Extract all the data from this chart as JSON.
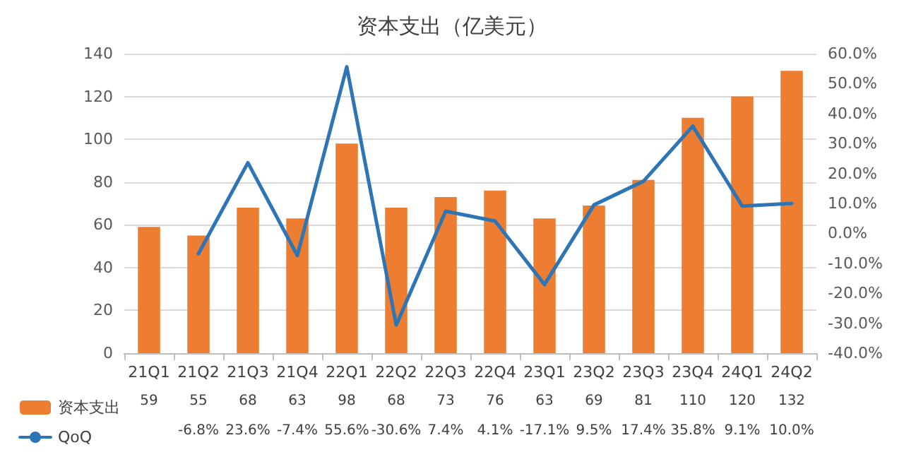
{
  "chart_data": {
    "type": "bar",
    "title": "资本支出（亿美元）",
    "categories": [
      "21Q1",
      "21Q2",
      "21Q3",
      "21Q4",
      "22Q1",
      "22Q2",
      "22Q3",
      "22Q4",
      "23Q1",
      "23Q2",
      "23Q3",
      "23Q4",
      "24Q1",
      "24Q2"
    ],
    "series": [
      {
        "name": "资本支出",
        "color": "#ed7d31",
        "values": [
          59,
          55,
          68,
          63,
          98,
          68,
          73,
          76,
          63,
          69,
          81,
          110,
          120,
          132
        ],
        "value_labels": [
          "59",
          "55",
          "68",
          "63",
          "98",
          "68",
          "73",
          "76",
          "63",
          "69",
          "81",
          "110",
          "120",
          "132"
        ]
      },
      {
        "name": "QoQ",
        "type": "line",
        "axis": "y2",
        "color": "#2e75b6",
        "values": [
          null,
          -6.8,
          23.6,
          -7.4,
          55.6,
          -30.6,
          7.4,
          4.1,
          -17.1,
          9.5,
          17.4,
          35.8,
          9.1,
          10.0
        ],
        "value_labels": [
          null,
          "-6.8%",
          "23.6%",
          "-7.4%",
          "55.6%",
          "-30.6%",
          "7.4%",
          "4.1%",
          "-17.1%",
          "9.5%",
          "17.4%",
          "35.8%",
          "9.1%",
          "10.0%"
        ]
      }
    ],
    "ylim": [
      0,
      140
    ],
    "yticks": [
      0,
      20,
      40,
      60,
      80,
      100,
      120,
      140
    ],
    "y2lim": [
      -40,
      60
    ],
    "y2ticks": [
      {
        "value": -40,
        "label": "-40.0%"
      },
      {
        "value": -30,
        "label": "-30.0%"
      },
      {
        "value": -20,
        "label": "-20.0%"
      },
      {
        "value": -10,
        "label": "-10.0%"
      },
      {
        "value": 0,
        "label": "0.0%"
      },
      {
        "value": 10,
        "label": "10.0%"
      },
      {
        "value": 20,
        "label": "20.0%"
      },
      {
        "value": 30,
        "label": "30.0%"
      },
      {
        "value": 40,
        "label": "40.0%"
      },
      {
        "value": 50,
        "label": "50.0%"
      },
      {
        "value": 60,
        "label": "60.0%"
      }
    ],
    "grid": "y",
    "legend": "bottom left",
    "marker": "none",
    "line_style": "solid"
  }
}
